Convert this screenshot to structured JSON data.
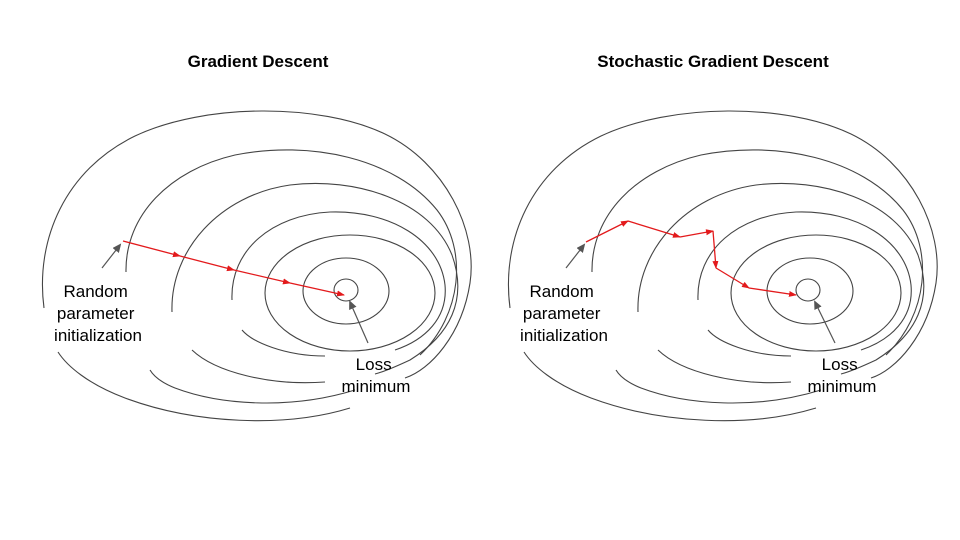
{
  "panels": [
    {
      "id": "gd",
      "title": "Gradient Descent",
      "start_label": [
        "Random",
        "parameter",
        "initialization"
      ],
      "end_label": [
        "Loss",
        "minimum"
      ]
    },
    {
      "id": "sgd",
      "title": "Stochastic Gradient Descent",
      "start_label": [
        "Random",
        "parameter",
        "initialization"
      ],
      "end_label": [
        "Loss",
        "minimum"
      ]
    }
  ],
  "colors": {
    "path": "#e31a1c",
    "contour": "#444444",
    "pointer": "#555555"
  }
}
